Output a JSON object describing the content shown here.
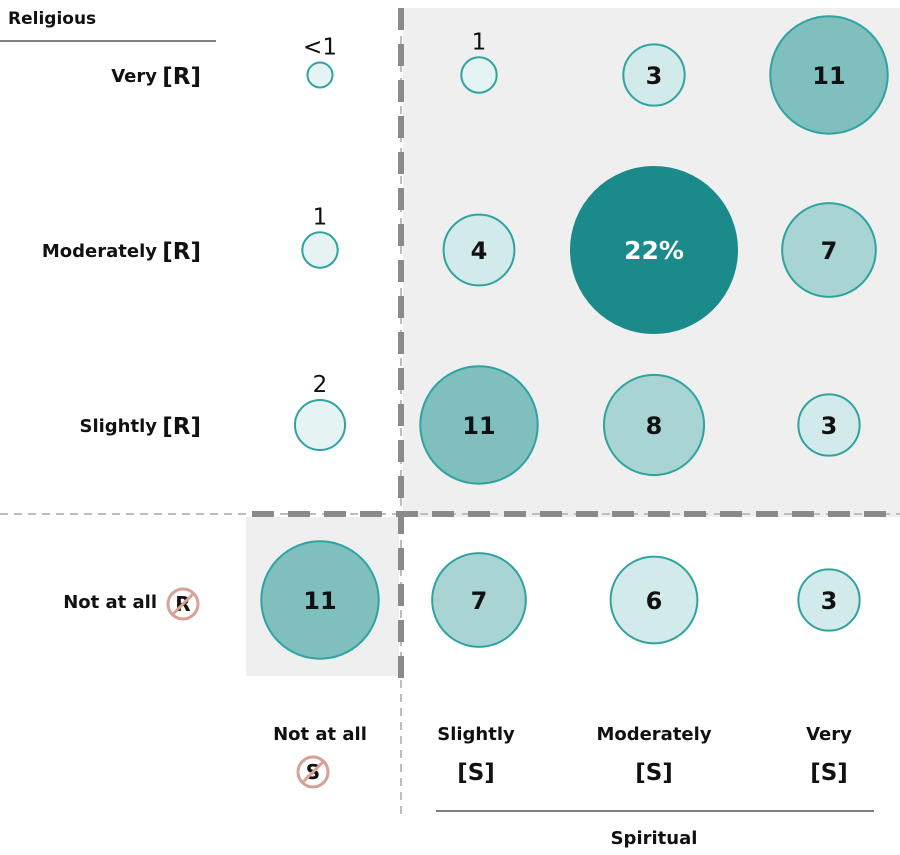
{
  "chart_data": {
    "type": "bubble",
    "y_axis_title": "Religious",
    "x_axis_title": "Spiritual",
    "rows": [
      {
        "label": "Very",
        "code": "[R]"
      },
      {
        "label": "Moderately",
        "code": "[R]"
      },
      {
        "label": "Slightly",
        "code": "[R]"
      },
      {
        "label": "Not at all",
        "code": "R"
      }
    ],
    "columns": [
      {
        "label": "Not at all",
        "code": "S"
      },
      {
        "label": "Slightly",
        "code": "[S]"
      },
      {
        "label": "Moderately",
        "code": "[S]"
      },
      {
        "label": "Very",
        "code": "[S]"
      }
    ],
    "cells": [
      {
        "row": 0,
        "col": 0,
        "value": 0.5,
        "label": "<1"
      },
      {
        "row": 0,
        "col": 1,
        "value": 1,
        "label": "1"
      },
      {
        "row": 0,
        "col": 2,
        "value": 3,
        "label": "3"
      },
      {
        "row": 0,
        "col": 3,
        "value": 11,
        "label": "11"
      },
      {
        "row": 1,
        "col": 0,
        "value": 1,
        "label": "1"
      },
      {
        "row": 1,
        "col": 1,
        "value": 4,
        "label": "4"
      },
      {
        "row": 1,
        "col": 2,
        "value": 22,
        "label": "22%"
      },
      {
        "row": 1,
        "col": 3,
        "value": 7,
        "label": "7"
      },
      {
        "row": 2,
        "col": 0,
        "value": 2,
        "label": "2"
      },
      {
        "row": 2,
        "col": 1,
        "value": 11,
        "label": "11"
      },
      {
        "row": 2,
        "col": 2,
        "value": 8,
        "label": "8"
      },
      {
        "row": 2,
        "col": 3,
        "value": 3,
        "label": "3"
      },
      {
        "row": 3,
        "col": 0,
        "value": 11,
        "label": "11"
      },
      {
        "row": 3,
        "col": 1,
        "value": 7,
        "label": "7"
      },
      {
        "row": 3,
        "col": 2,
        "value": 6,
        "label": "6"
      },
      {
        "row": 3,
        "col": 3,
        "value": 3,
        "label": "3"
      }
    ],
    "unit": "%",
    "colors": {
      "bubble_dark": "#1b8a8a",
      "bubble_mid": "#7fc0bf",
      "bubble_light": "#a8d5d3",
      "bubble_pale": "#d2eaea",
      "bubble_faint": "#e5f3f3",
      "bubble_stroke": "#2fa3a0",
      "shade": "#efefef",
      "divider": "#8a8a8a",
      "not_symbol": "#d9a097"
    }
  }
}
